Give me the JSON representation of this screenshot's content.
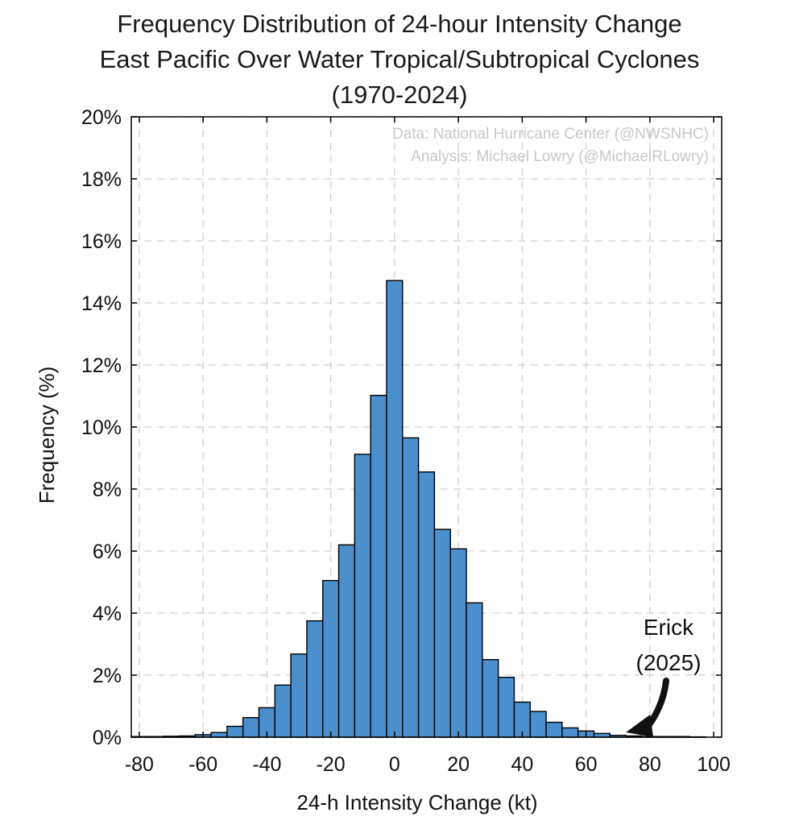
{
  "chart_data": {
    "type": "bar",
    "title_lines": [
      "Frequency Distribution of 24-hour Intensity Change",
      "East Pacific Over Water Tropical/Subtropical Cyclones",
      "(1970-2024)"
    ],
    "xlabel": "24-h Intensity Change (kt)",
    "ylabel": "Frequency (%)",
    "xlim": [
      -82.5,
      102.5
    ],
    "ylim": [
      0,
      20
    ],
    "xticks": [
      -80,
      -60,
      -40,
      -20,
      0,
      20,
      40,
      60,
      80,
      100
    ],
    "xtick_labels": [
      "-80",
      "-60",
      "-40",
      "-20",
      "0",
      "20",
      "40",
      "60",
      "80",
      "100"
    ],
    "yticks": [
      0,
      2,
      4,
      6,
      8,
      10,
      12,
      14,
      16,
      18,
      20
    ],
    "ytick_labels": [
      "0%",
      "2%",
      "4%",
      "6%",
      "8%",
      "10%",
      "12%",
      "14%",
      "16%",
      "18%",
      "20%"
    ],
    "grid": true,
    "bin_width": 5,
    "bin_centers": [
      -80,
      -75,
      -70,
      -65,
      -60,
      -55,
      -50,
      -45,
      -40,
      -35,
      -30,
      -25,
      -20,
      -15,
      -10,
      -5,
      0,
      5,
      10,
      15,
      20,
      25,
      30,
      35,
      40,
      45,
      50,
      55,
      60,
      65,
      70,
      75,
      80,
      85,
      90,
      95
    ],
    "values": [
      0.02,
      0.02,
      0.03,
      0.04,
      0.08,
      0.15,
      0.35,
      0.63,
      0.95,
      1.68,
      2.68,
      3.75,
      5.05,
      6.2,
      9.12,
      11.02,
      14.72,
      9.65,
      8.55,
      6.7,
      6.07,
      4.33,
      2.5,
      1.93,
      1.13,
      0.83,
      0.48,
      0.3,
      0.2,
      0.12,
      0.06,
      0.04,
      0.02,
      0.02,
      0.02,
      0.01
    ],
    "bar_color": "#4a8fce",
    "bar_edge_color": "#000000",
    "grid_color": "#d0d0d0",
    "credits": [
      "Data: National Hurricane Center (@NWSNHC)",
      "Analysis: Michael Lowry (@MichaelRLowry)"
    ],
    "annotation": {
      "lines": [
        "Erick",
        "(2025)"
      ],
      "points_to_x": 72.5,
      "points_to_y": 0
    }
  }
}
